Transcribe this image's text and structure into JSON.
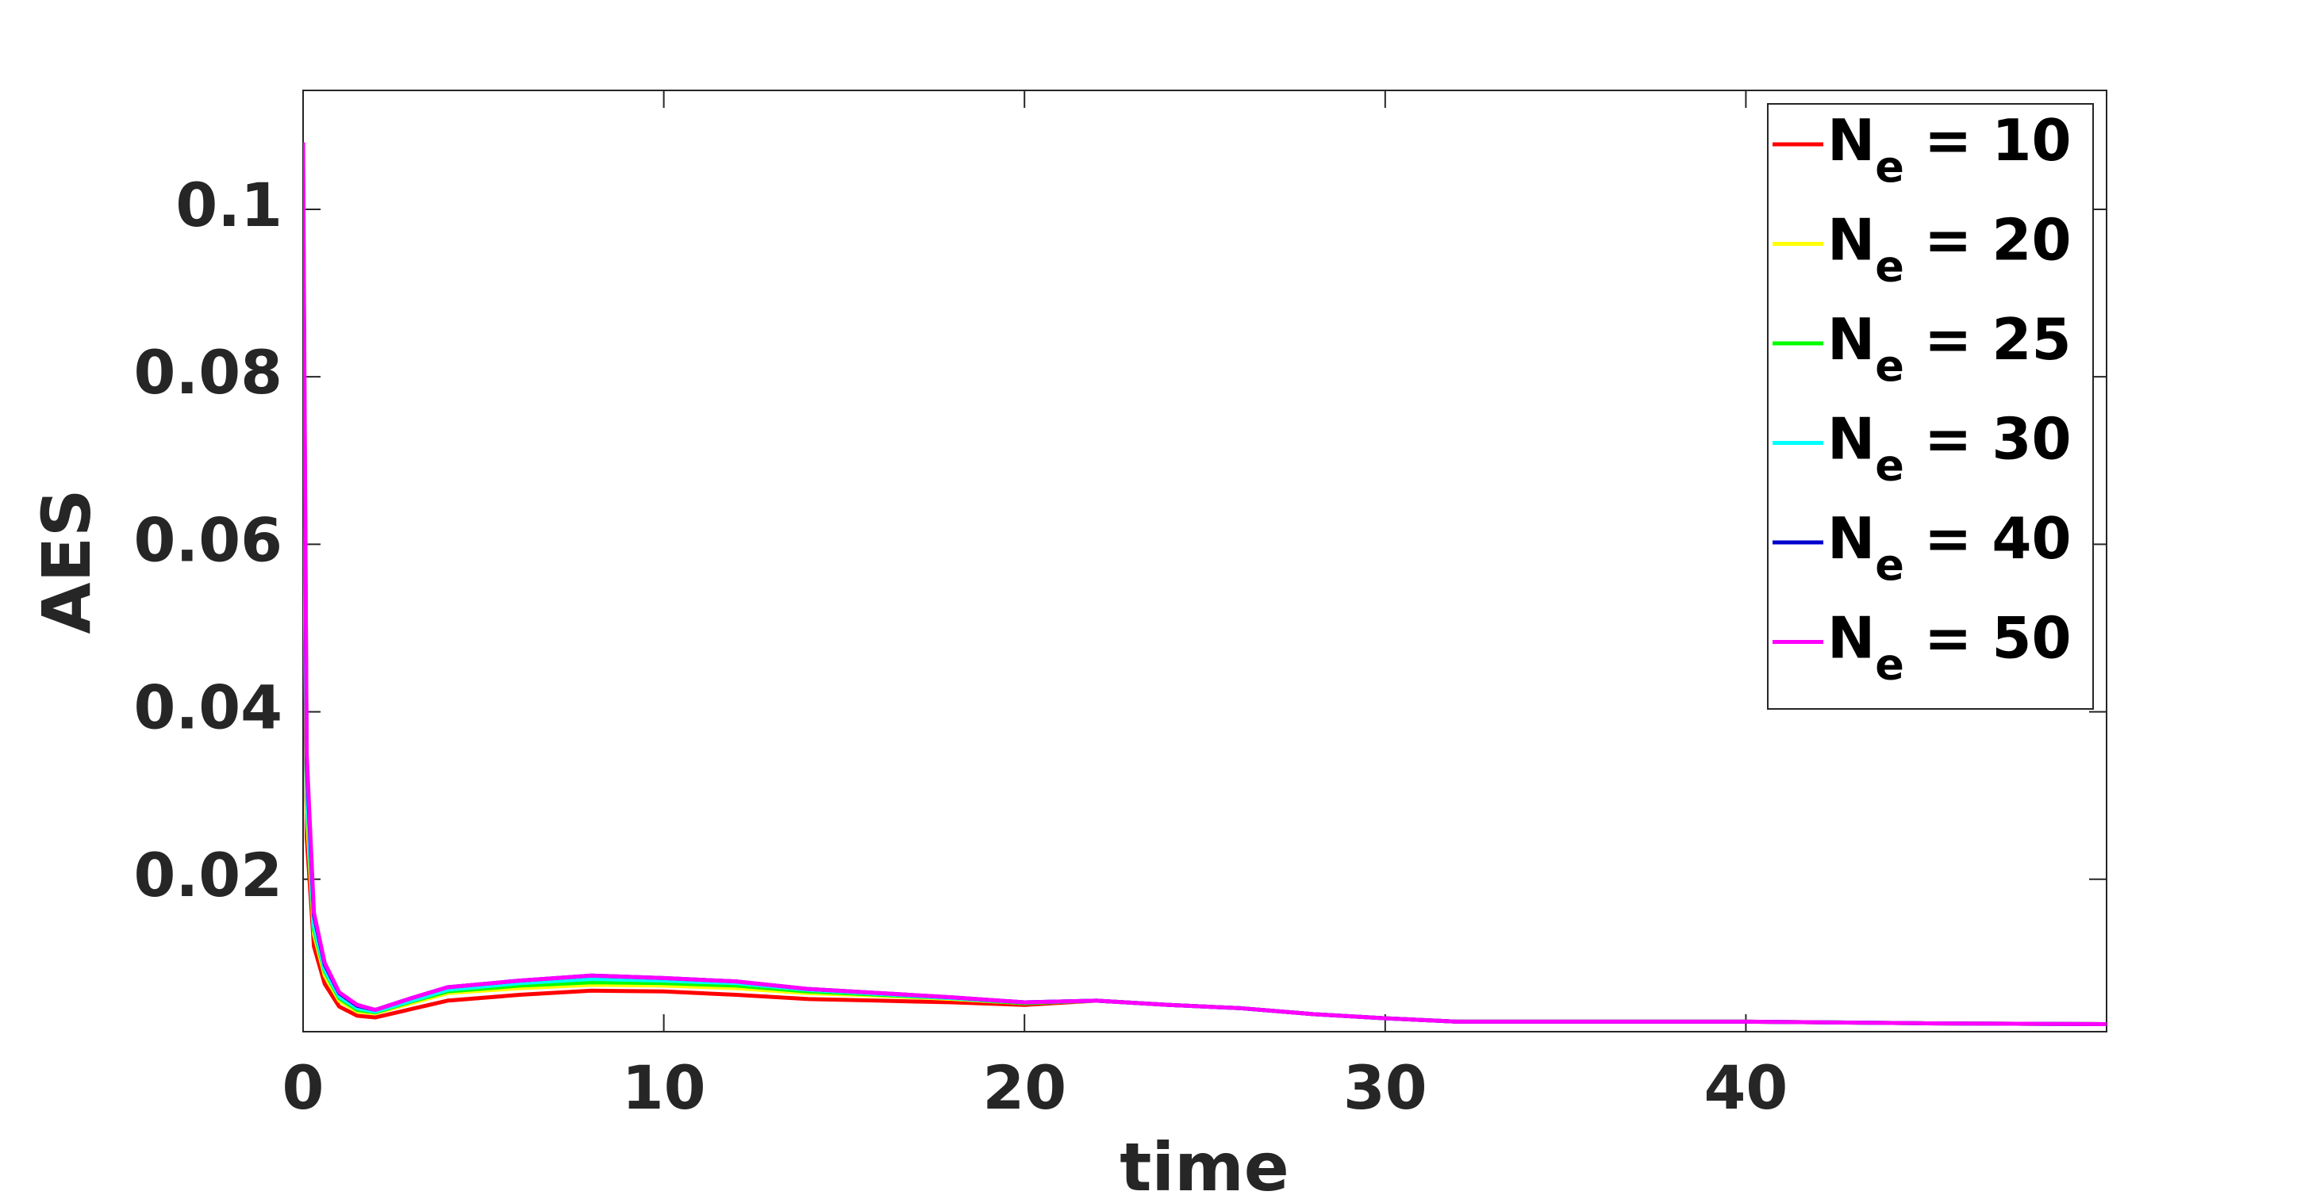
{
  "chart_data": {
    "type": "line",
    "xlabel": "time",
    "ylabel": "AES",
    "x": [
      0,
      0.1,
      0.3,
      0.6,
      1,
      1.5,
      2,
      3,
      4,
      6,
      8,
      10,
      12,
      14,
      16,
      18,
      20,
      22,
      24,
      26,
      28,
      30,
      32,
      35,
      40,
      45,
      50
    ],
    "xlim": [
      0,
      50
    ],
    "ylim": [
      0.0018,
      0.1142
    ],
    "xticks": [
      0,
      10,
      20,
      30,
      40
    ],
    "yticks": [
      0.02,
      0.04,
      0.06,
      0.08,
      0.1
    ],
    "grid": false,
    "legend": "upper right",
    "series": [
      {
        "name": "Ne = 10",
        "color": "#ff0000",
        "values": [
          0.078,
          0.025,
          0.012,
          0.0075,
          0.0048,
          0.0037,
          0.0035,
          0.0045,
          0.0055,
          0.0062,
          0.0067,
          0.0066,
          0.0062,
          0.0057,
          0.0055,
          0.0053,
          0.005,
          0.0055,
          0.005,
          0.0046,
          0.0039,
          0.0034,
          0.003,
          0.003,
          0.003,
          0.0028,
          0.0027
        ]
      },
      {
        "name": "Ne = 20",
        "color": "#ffff00",
        "values": [
          0.085,
          0.028,
          0.0135,
          0.0085,
          0.0055,
          0.0042,
          0.004,
          0.0052,
          0.0064,
          0.007,
          0.0074,
          0.0073,
          0.007,
          0.0064,
          0.0061,
          0.0057,
          0.0052,
          0.0055,
          0.005,
          0.0046,
          0.0039,
          0.0034,
          0.003,
          0.003,
          0.003,
          0.0028,
          0.0027
        ]
      },
      {
        "name": "Ne = 25",
        "color": "#00ff00",
        "values": [
          0.09,
          0.03,
          0.014,
          0.009,
          0.0058,
          0.0044,
          0.0041,
          0.0054,
          0.0066,
          0.0073,
          0.0077,
          0.0076,
          0.0073,
          0.0066,
          0.0062,
          0.0058,
          0.0052,
          0.0055,
          0.005,
          0.0046,
          0.0039,
          0.0034,
          0.003,
          0.003,
          0.003,
          0.0028,
          0.0027
        ]
      },
      {
        "name": "Ne = 30",
        "color": "#00ffff",
        "values": [
          0.095,
          0.031,
          0.0145,
          0.0092,
          0.006,
          0.0046,
          0.0042,
          0.0055,
          0.0068,
          0.0076,
          0.0081,
          0.0079,
          0.0076,
          0.0068,
          0.0063,
          0.0058,
          0.0053,
          0.0055,
          0.005,
          0.0046,
          0.0039,
          0.0034,
          0.003,
          0.003,
          0.003,
          0.0028,
          0.0027
        ]
      },
      {
        "name": "Ne = 40",
        "color": "#0000cc",
        "values": [
          0.104,
          0.034,
          0.0157,
          0.0098,
          0.0064,
          0.0049,
          0.0044,
          0.0058,
          0.0071,
          0.0079,
          0.0085,
          0.0082,
          0.0078,
          0.0069,
          0.0064,
          0.0059,
          0.0053,
          0.0055,
          0.005,
          0.0046,
          0.0039,
          0.0034,
          0.003,
          0.003,
          0.003,
          0.0028,
          0.0027
        ]
      },
      {
        "name": "Ne = 50",
        "color": "#ff00ff",
        "values": [
          0.108,
          0.035,
          0.016,
          0.01,
          0.0065,
          0.005,
          0.0044,
          0.0058,
          0.0071,
          0.0079,
          0.0085,
          0.0082,
          0.0078,
          0.0069,
          0.0064,
          0.0059,
          0.0053,
          0.0055,
          0.005,
          0.0046,
          0.0039,
          0.0034,
          0.003,
          0.003,
          0.003,
          0.0028,
          0.0027
        ]
      }
    ]
  }
}
